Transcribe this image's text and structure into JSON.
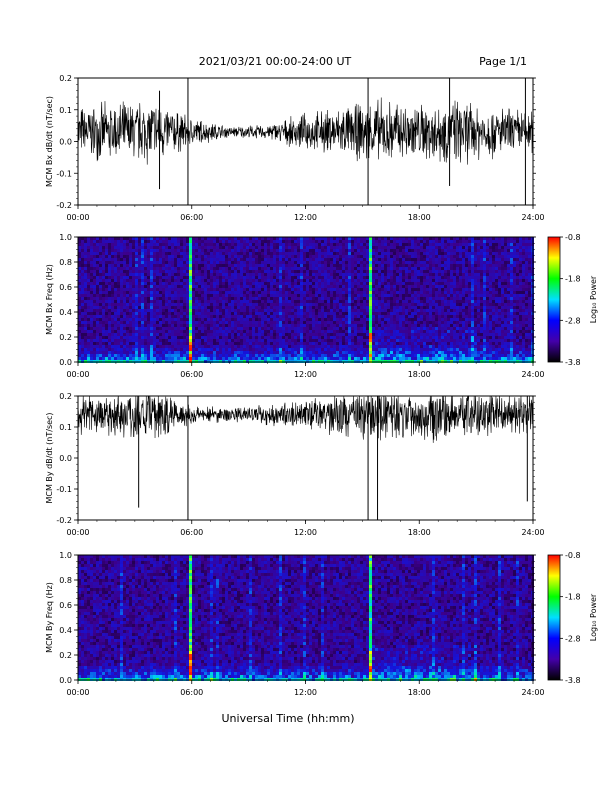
{
  "header": {
    "title": "2021/03/21  00:00-24:00 UT",
    "page": "Page 1/1"
  },
  "xaxis": {
    "label": "Universal Time (hh:mm)",
    "ticks": [
      "00:00",
      "06:00",
      "12:00",
      "18:00",
      "24:00"
    ]
  },
  "colorbar": {
    "label": "Log₁₀ Power",
    "ticks": [
      "-0.8",
      "-1.8",
      "-2.8",
      "-3.8"
    ],
    "range": [
      -3.8,
      -0.8
    ],
    "colors": [
      "#000000",
      "#4400aa",
      "#0000ff",
      "#00e0ff",
      "#00ff00",
      "#ffff00",
      "#ff0000"
    ]
  },
  "chart_data": [
    {
      "type": "line",
      "id": "bx",
      "ylabel": "MCM Bx dB/dt (nT/sec)",
      "xlim": [
        0,
        24
      ],
      "ylim": [
        -0.2,
        0.2
      ],
      "yticks": [
        "0.2",
        "0.1",
        "0.0",
        "-0.1",
        "-0.2"
      ],
      "baseline": 0.03,
      "envelope": [
        {
          "x": 0,
          "amp": 0.07
        },
        {
          "x": 2,
          "amp": 0.08
        },
        {
          "x": 4,
          "amp": 0.09
        },
        {
          "x": 6,
          "amp": 0.04
        },
        {
          "x": 8,
          "amp": 0.015
        },
        {
          "x": 10,
          "amp": 0.02
        },
        {
          "x": 12,
          "amp": 0.05
        },
        {
          "x": 14,
          "amp": 0.07
        },
        {
          "x": 16,
          "amp": 0.09
        },
        {
          "x": 18,
          "amp": 0.08
        },
        {
          "x": 20,
          "amp": 0.09
        },
        {
          "x": 22,
          "amp": 0.07
        },
        {
          "x": 24,
          "amp": 0.06
        }
      ],
      "spikes": [
        {
          "x": 5.8,
          "min": -0.2,
          "max": 0.2
        },
        {
          "x": 15.3,
          "min": -0.2,
          "max": 0.2
        },
        {
          "x": 23.6,
          "min": -0.2,
          "max": 0.2
        },
        {
          "x": 4.3,
          "min": -0.15,
          "max": 0.16
        },
        {
          "x": 19.6,
          "min": -0.14,
          "max": 0.2
        }
      ]
    },
    {
      "type": "heatmap",
      "id": "bx-spec",
      "ylabel": "MCM Bx Freq (Hz)",
      "xlim": [
        0,
        24
      ],
      "ylim": [
        0,
        1.0
      ],
      "yticks": [
        "1.0",
        "0.8",
        "0.6",
        "0.4",
        "0.2",
        "0.0"
      ],
      "zlim": [
        -3.8,
        -0.8
      ],
      "bright_columns": [
        5.8,
        15.3
      ]
    },
    {
      "type": "line",
      "id": "by",
      "ylabel": "MCM By dB/dt (nT/sec)",
      "xlim": [
        0,
        24
      ],
      "ylim": [
        -0.2,
        0.2
      ],
      "yticks": [
        "0.2",
        "0.1",
        "0.0",
        "-0.1",
        "-0.2"
      ],
      "baseline": 0.14,
      "envelope": [
        {
          "x": 0,
          "amp": 0.06
        },
        {
          "x": 2,
          "amp": 0.07
        },
        {
          "x": 4,
          "amp": 0.08
        },
        {
          "x": 6,
          "amp": 0.03
        },
        {
          "x": 8,
          "amp": 0.02
        },
        {
          "x": 10,
          "amp": 0.03
        },
        {
          "x": 12,
          "amp": 0.04
        },
        {
          "x": 14,
          "amp": 0.06
        },
        {
          "x": 16,
          "amp": 0.08
        },
        {
          "x": 18,
          "amp": 0.07
        },
        {
          "x": 20,
          "amp": 0.08
        },
        {
          "x": 22,
          "amp": 0.06
        },
        {
          "x": 24,
          "amp": 0.05
        }
      ],
      "spikes": [
        {
          "x": 5.8,
          "min": -0.2,
          "max": 0.2
        },
        {
          "x": 15.3,
          "min": -0.2,
          "max": 0.2
        },
        {
          "x": 15.8,
          "min": -0.2,
          "max": 0.2
        },
        {
          "x": 3.2,
          "min": -0.16,
          "max": 0.2
        },
        {
          "x": 23.7,
          "min": -0.14,
          "max": 0.2
        }
      ]
    },
    {
      "type": "heatmap",
      "id": "by-spec",
      "ylabel": "MCM By Freq (Hz)",
      "xlim": [
        0,
        24
      ],
      "ylim": [
        0,
        1.0
      ],
      "yticks": [
        "1.0",
        "0.8",
        "0.6",
        "0.4",
        "0.2",
        "0.0"
      ],
      "zlim": [
        -3.8,
        -0.8
      ],
      "bright_columns": [
        5.8,
        15.3
      ]
    }
  ]
}
